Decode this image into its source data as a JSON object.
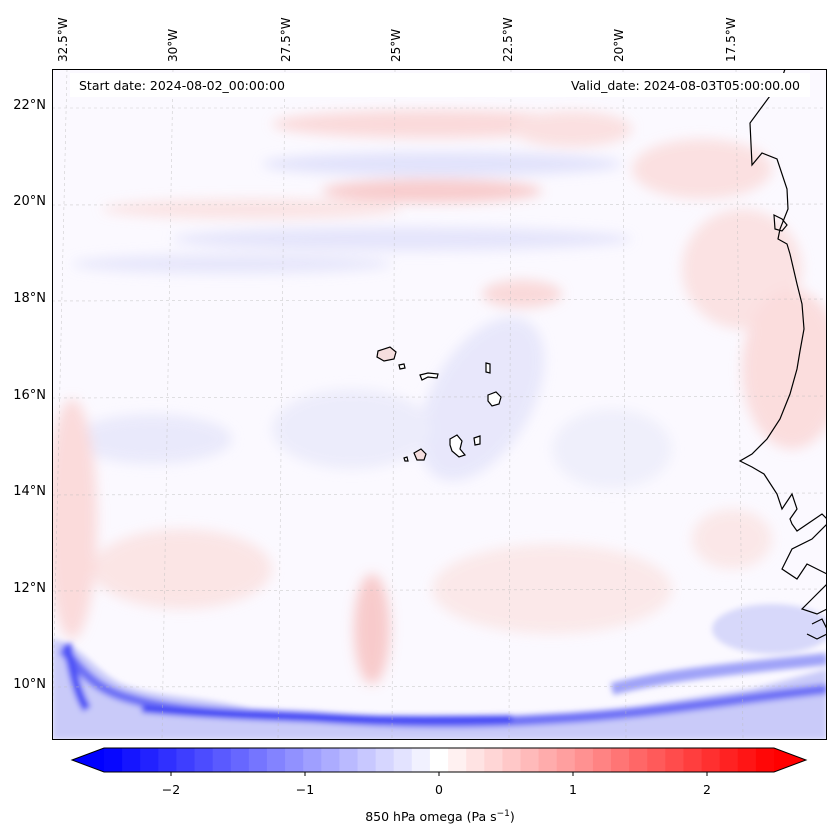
{
  "header": {
    "start_date": "Start date: 2024-08-02_00:00:00",
    "valid_date": "Valid_date: 2024-08-03T05:00:00.00"
  },
  "lon_labels": [
    "32.5°W",
    "30°W",
    "27.5°W",
    "25°W",
    "22.5°W",
    "20°W",
    "17.5°W"
  ],
  "lat_labels": [
    "22°N",
    "20°N",
    "18°N",
    "16°N",
    "14°N",
    "12°N",
    "10°N"
  ],
  "colorbar": {
    "label": "850 hPa omega (Pa s",
    "label_exp": "−1",
    "label_close": ")",
    "ticks": [
      "−2",
      "−1",
      "0",
      "1",
      "2"
    ],
    "tick_values": [
      -2,
      -1,
      0,
      1,
      2
    ],
    "range": [
      -2.5,
      2.5
    ],
    "levels": 37,
    "colormap": "bwr",
    "low_color": "#0000ff",
    "mid_color": "#ffffff",
    "high_color": "#ff0000"
  }
}
